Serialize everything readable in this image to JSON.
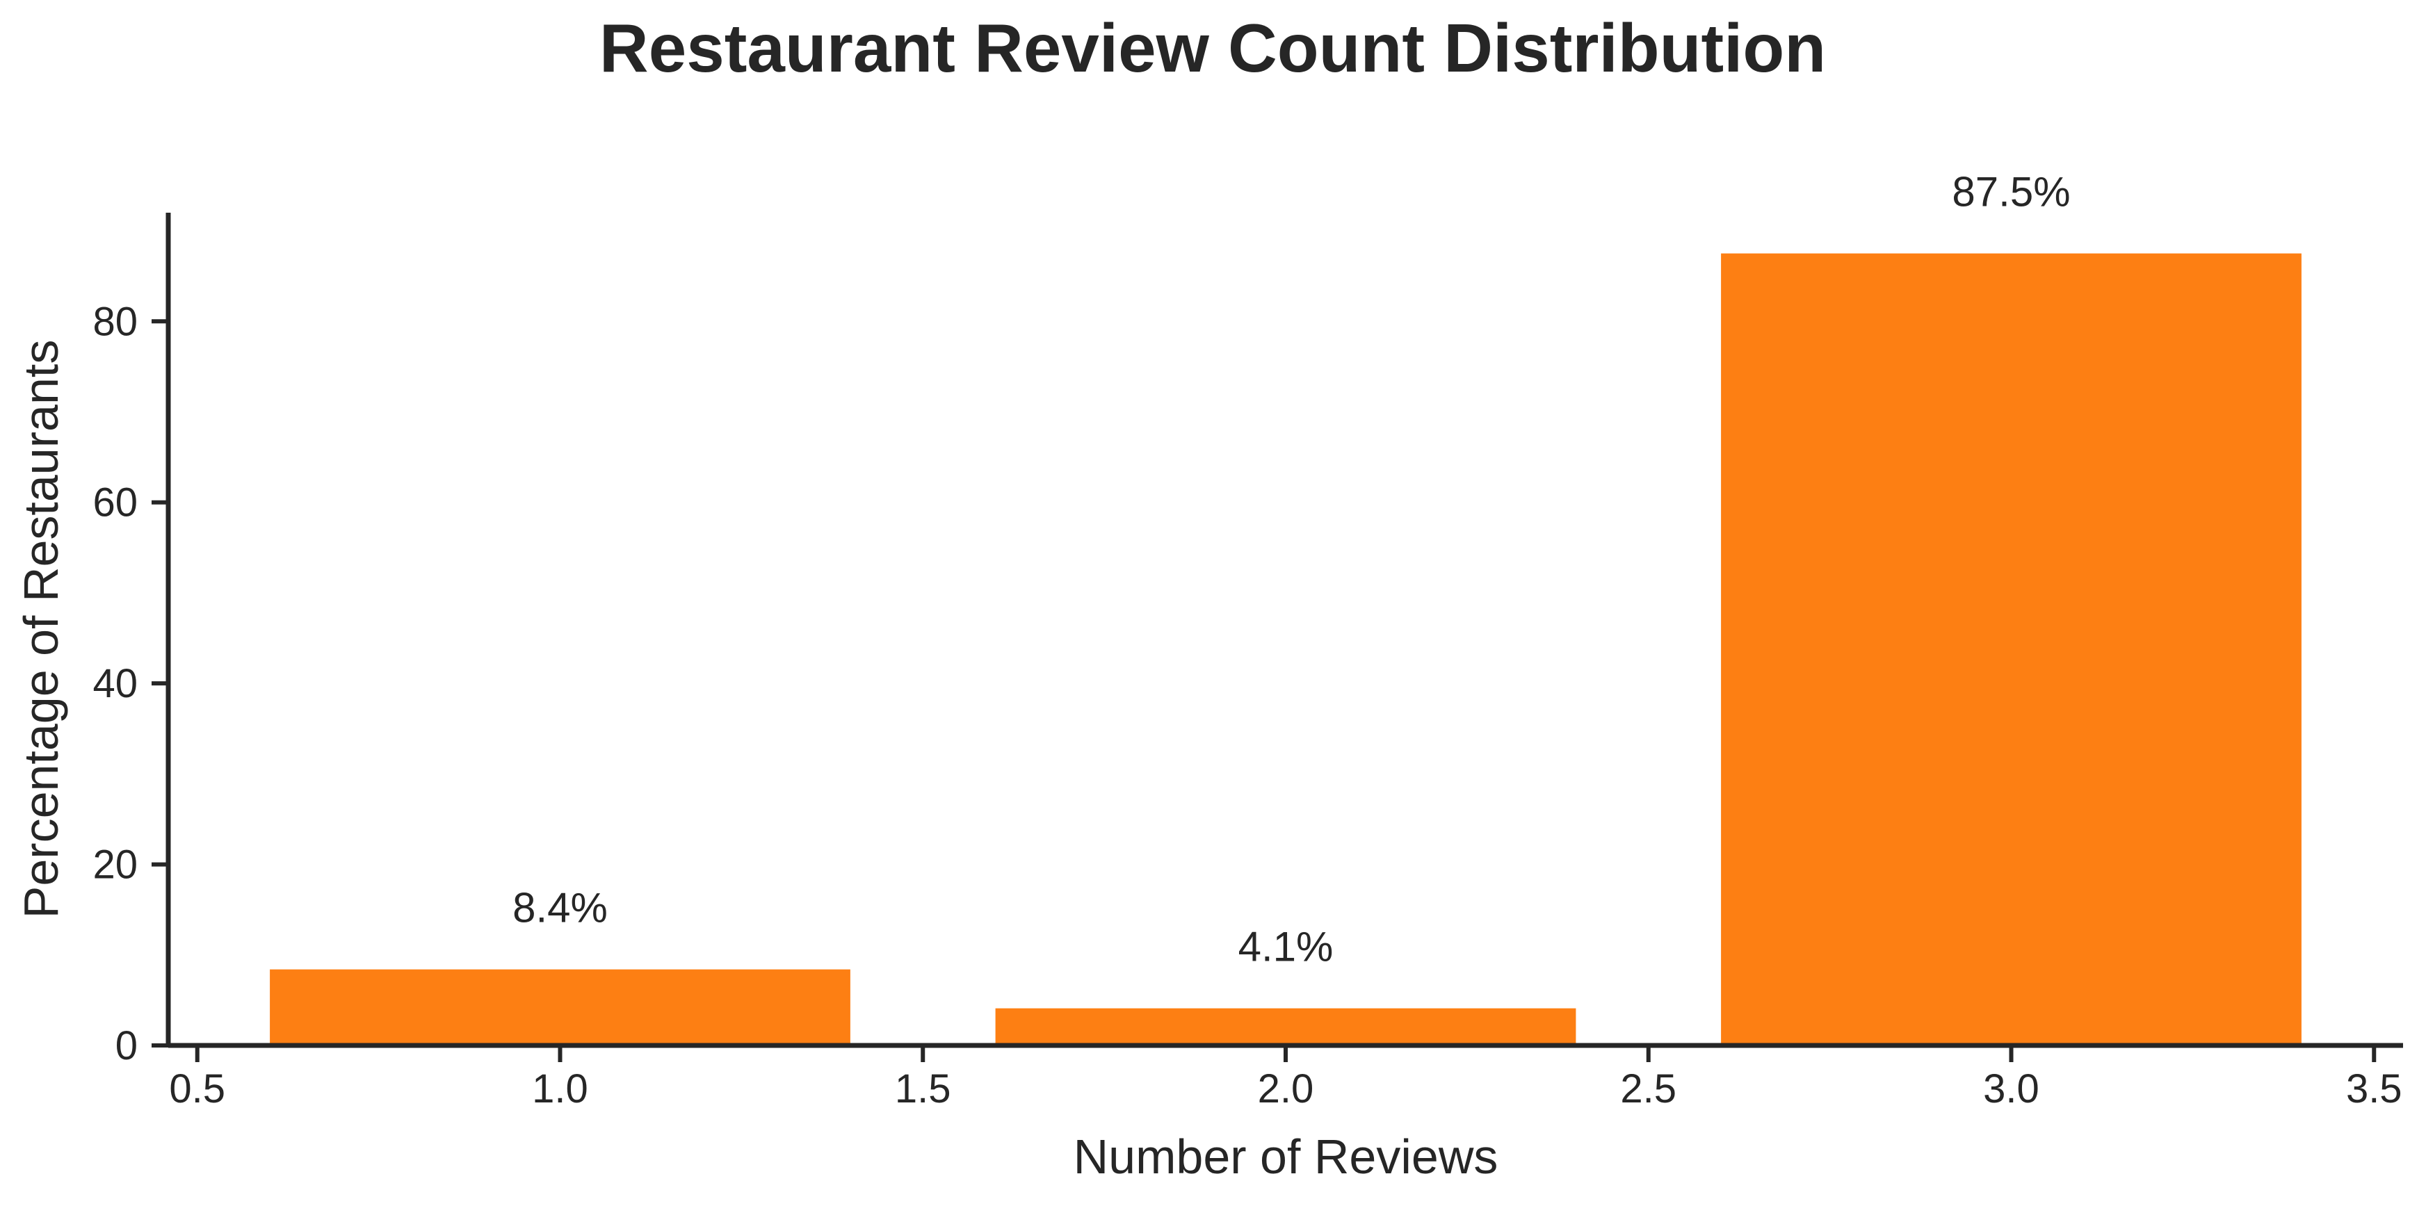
{
  "chart_data": {
    "type": "bar",
    "title": "Restaurant Review Count Distribution",
    "xlabel": "Number of Reviews",
    "ylabel": "Percentage of Restaurants",
    "x": [
      1.0,
      2.0,
      3.0
    ],
    "values": [
      8.4,
      4.1,
      87.5
    ],
    "bar_width": 0.8,
    "data_labels": [
      "8.4%",
      "4.1%",
      "87.5%"
    ],
    "xlim": [
      0.46,
      3.54
    ],
    "ylim": [
      0,
      92
    ],
    "xticks": [
      0.5,
      1.0,
      1.5,
      2.0,
      2.5,
      3.0,
      3.5
    ],
    "xtick_labels": [
      "0.5",
      "1.0",
      "1.5",
      "2.0",
      "2.5",
      "3.0",
      "3.5"
    ],
    "yticks": [
      0,
      20,
      40,
      60,
      80
    ],
    "ytick_labels": [
      "0",
      "20",
      "40",
      "60",
      "80"
    ],
    "bar_color": "#fd7f13",
    "grid": false,
    "legend": "none"
  }
}
